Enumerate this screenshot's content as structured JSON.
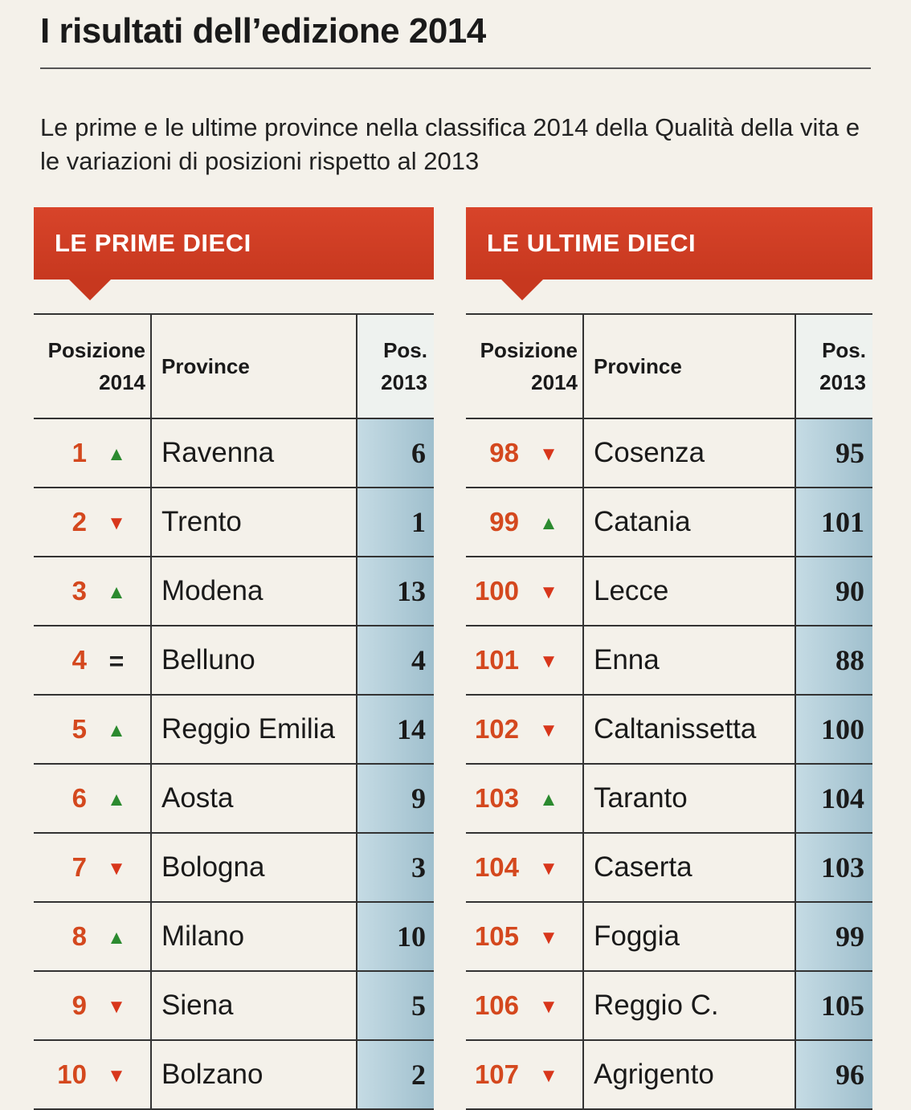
{
  "title": "I risultati dell’edizione 2014",
  "subtitle": "Le prime e le ultime province nella classifica 2014 della Qualità della vita e le variazioni di posizioni rispetto al 2013",
  "headers": {
    "pos_line1": "Posizione",
    "pos_line2": "2014",
    "province": "Province",
    "prev_line1": "Pos.",
    "prev_line2": "2013"
  },
  "left": {
    "banner": "LE PRIME DIECI",
    "rows": [
      {
        "rank": "1",
        "trend": "▲",
        "trend_type": "up",
        "province": "Ravenna",
        "prev": "6"
      },
      {
        "rank": "2",
        "trend": "▼",
        "trend_type": "down",
        "province": "Trento",
        "prev": "1"
      },
      {
        "rank": "3",
        "trend": "▲",
        "trend_type": "up",
        "province": "Modena",
        "prev": "13"
      },
      {
        "rank": "4",
        "trend": "=",
        "trend_type": "eq",
        "province": "Belluno",
        "prev": "4"
      },
      {
        "rank": "5",
        "trend": "▲",
        "trend_type": "up",
        "province": "Reggio Emilia",
        "prev": "14"
      },
      {
        "rank": "6",
        "trend": "▲",
        "trend_type": "up",
        "province": "Aosta",
        "prev": "9"
      },
      {
        "rank": "7",
        "trend": "▼",
        "trend_type": "down",
        "province": "Bologna",
        "prev": "3"
      },
      {
        "rank": "8",
        "trend": "▲",
        "trend_type": "up",
        "province": "Milano",
        "prev": "10"
      },
      {
        "rank": "9",
        "trend": "▼",
        "trend_type": "down",
        "province": "Siena",
        "prev": "5"
      },
      {
        "rank": "10",
        "trend": "▼",
        "trend_type": "down",
        "province": "Bolzano",
        "prev": "2"
      }
    ]
  },
  "right": {
    "banner": "LE ULTIME DIECI",
    "rows": [
      {
        "rank": "98",
        "trend": "▼",
        "trend_type": "down",
        "province": "Cosenza",
        "prev": "95"
      },
      {
        "rank": "99",
        "trend": "▲",
        "trend_type": "up",
        "province": "Catania",
        "prev": "101"
      },
      {
        "rank": "100",
        "trend": "▼",
        "trend_type": "down",
        "province": "Lecce",
        "prev": "90"
      },
      {
        "rank": "101",
        "trend": "▼",
        "trend_type": "down",
        "province": "Enna",
        "prev": "88"
      },
      {
        "rank": "102",
        "trend": "▼",
        "trend_type": "down",
        "province": "Caltanissetta",
        "prev": "100"
      },
      {
        "rank": "103",
        "trend": "▲",
        "trend_type": "up",
        "province": "Taranto",
        "prev": "104"
      },
      {
        "rank": "104",
        "trend": "▼",
        "trend_type": "down",
        "province": "Caserta",
        "prev": "103"
      },
      {
        "rank": "105",
        "trend": "▼",
        "trend_type": "down",
        "province": "Foggia",
        "prev": "99"
      },
      {
        "rank": "106",
        "trend": "▼",
        "trend_type": "down",
        "province": "Reggio C.",
        "prev": "105"
      },
      {
        "rank": "107",
        "trend": "▼",
        "trend_type": "down",
        "province": "Agrigento",
        "prev": "96"
      }
    ]
  }
}
